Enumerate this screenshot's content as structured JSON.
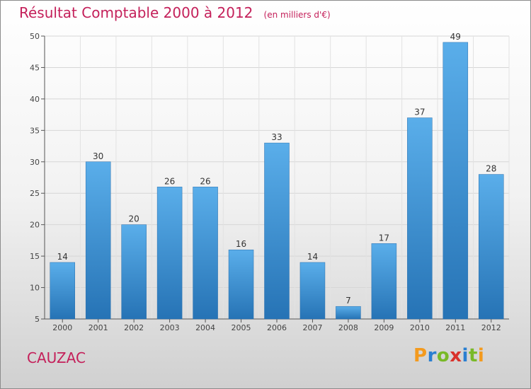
{
  "chart_data": {
    "type": "bar",
    "title": "Résultat Comptable 2000 à 2012",
    "subtitle": "(en milliers d'€)",
    "categories": [
      "2000",
      "2001",
      "2002",
      "2003",
      "2004",
      "2005",
      "2006",
      "2007",
      "2008",
      "2009",
      "2010",
      "2011",
      "2012"
    ],
    "values": [
      14,
      30,
      20,
      26,
      26,
      16,
      33,
      14,
      7,
      17,
      37,
      49,
      28
    ],
    "ylim": [
      5,
      50
    ],
    "yticks": [
      5,
      10,
      15,
      20,
      25,
      30,
      35,
      40,
      45,
      50
    ],
    "xlabel": "",
    "ylabel": "",
    "grid": true,
    "bar_color": "#3a8fd6"
  },
  "location": {
    "name": "CAUZAC"
  },
  "brand": {
    "letters": [
      {
        "char": "P",
        "color": "#f39a1e"
      },
      {
        "char": "r",
        "color": "#2a7fd1"
      },
      {
        "char": "o",
        "color": "#79b928"
      },
      {
        "char": "x",
        "color": "#d9322b"
      },
      {
        "char": "i",
        "color": "#2a7fd1"
      },
      {
        "char": "t",
        "color": "#79b928"
      },
      {
        "char": "i",
        "color": "#f39a1e"
      }
    ]
  }
}
